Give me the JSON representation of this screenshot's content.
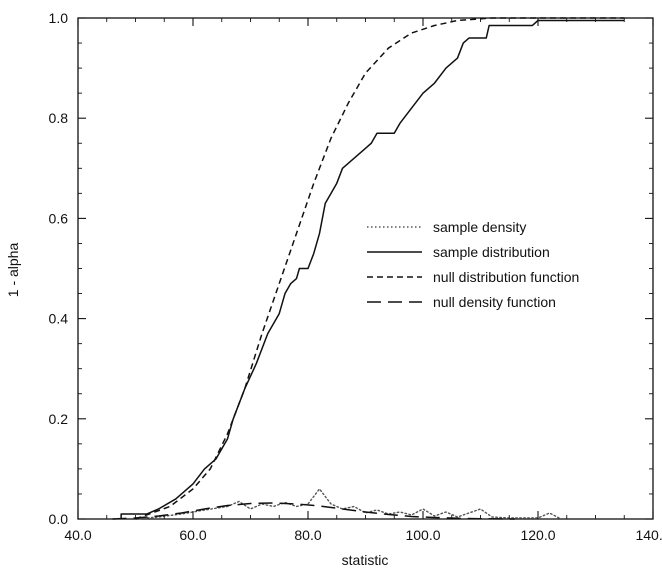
{
  "chart_data": {
    "type": "line",
    "xlabel": "statistic",
    "ylabel": "1 - alpha",
    "xlim": [
      40.0,
      140.0
    ],
    "ylim": [
      0.0,
      1.0
    ],
    "x_ticks": [
      40.0,
      60.0,
      80.0,
      100.0,
      120.0,
      140.0
    ],
    "x_tick_labels": [
      "40.0",
      "60.0",
      "80.0",
      "100.0",
      "120.0",
      "140.0"
    ],
    "y_ticks": [
      0.0,
      0.2,
      0.4,
      0.6,
      0.8,
      1.0
    ],
    "y_tick_labels": [
      "0.0",
      "0.2",
      "0.4",
      "0.6",
      "0.8",
      "1.0"
    ],
    "grid": false,
    "legend_position": "right-middle",
    "series": [
      {
        "name": "sample density",
        "style": "dotted",
        "color": "#555555",
        "points": [
          [
            50,
            0.0
          ],
          [
            54,
            0.004
          ],
          [
            58,
            0.01
          ],
          [
            62,
            0.018
          ],
          [
            66,
            0.025
          ],
          [
            68,
            0.035
          ],
          [
            70,
            0.02
          ],
          [
            72,
            0.03
          ],
          [
            74,
            0.025
          ],
          [
            76,
            0.033
          ],
          [
            78,
            0.025
          ],
          [
            80,
            0.03
          ],
          [
            82,
            0.06
          ],
          [
            84,
            0.03
          ],
          [
            86,
            0.02
          ],
          [
            88,
            0.025
          ],
          [
            90,
            0.012
          ],
          [
            92,
            0.018
          ],
          [
            94,
            0.01
          ],
          [
            96,
            0.014
          ],
          [
            98,
            0.008
          ],
          [
            100,
            0.02
          ],
          [
            102,
            0.006
          ],
          [
            104,
            0.014
          ],
          [
            106,
            0.004
          ],
          [
            108,
            0.012
          ],
          [
            110,
            0.02
          ],
          [
            112,
            0.004
          ],
          [
            115,
            0.002
          ],
          [
            120,
            0.002
          ],
          [
            122,
            0.012
          ],
          [
            124,
            0.0
          ]
        ]
      },
      {
        "name": "sample distribution",
        "style": "solid",
        "color": "#111111",
        "points": [
          [
            47.5,
            0.0
          ],
          [
            47.5,
            0.01
          ],
          [
            52,
            0.01
          ],
          [
            54,
            0.02
          ],
          [
            57,
            0.04
          ],
          [
            60,
            0.07
          ],
          [
            62,
            0.1
          ],
          [
            64,
            0.12
          ],
          [
            66,
            0.16
          ],
          [
            67,
            0.2
          ],
          [
            69,
            0.26
          ],
          [
            71,
            0.31
          ],
          [
            73,
            0.37
          ],
          [
            75,
            0.41
          ],
          [
            76,
            0.45
          ],
          [
            77,
            0.47
          ],
          [
            78,
            0.48
          ],
          [
            78.5,
            0.5
          ],
          [
            80,
            0.5
          ],
          [
            81,
            0.53
          ],
          [
            82,
            0.57
          ],
          [
            83,
            0.63
          ],
          [
            85,
            0.67
          ],
          [
            86,
            0.7
          ],
          [
            88,
            0.72
          ],
          [
            90,
            0.74
          ],
          [
            91,
            0.75
          ],
          [
            92,
            0.77
          ],
          [
            95,
            0.77
          ],
          [
            96,
            0.79
          ],
          [
            98,
            0.82
          ],
          [
            100,
            0.85
          ],
          [
            102,
            0.87
          ],
          [
            104,
            0.9
          ],
          [
            106,
            0.92
          ],
          [
            107,
            0.95
          ],
          [
            108,
            0.96
          ],
          [
            111,
            0.96
          ],
          [
            111.5,
            0.985
          ],
          [
            119,
            0.985
          ],
          [
            120,
            0.995
          ],
          [
            135,
            0.995
          ]
        ]
      },
      {
        "name": "null distribution function",
        "style": "dashed",
        "color": "#111111",
        "points": [
          [
            50,
            0.0
          ],
          [
            56,
            0.025
          ],
          [
            60,
            0.06
          ],
          [
            63,
            0.1
          ],
          [
            66,
            0.17
          ],
          [
            69,
            0.26
          ],
          [
            72,
            0.37
          ],
          [
            75,
            0.47
          ],
          [
            78,
            0.57
          ],
          [
            81,
            0.67
          ],
          [
            84,
            0.76
          ],
          [
            87,
            0.83
          ],
          [
            90,
            0.89
          ],
          [
            94,
            0.94
          ],
          [
            98,
            0.97
          ],
          [
            102,
            0.985
          ],
          [
            106,
            0.995
          ],
          [
            112,
            1.0
          ],
          [
            135,
            1.0
          ]
        ]
      },
      {
        "name": "null density function",
        "style": "long-dashed",
        "color": "#111111",
        "points": [
          [
            46,
            0.0
          ],
          [
            50,
            0.002
          ],
          [
            54,
            0.006
          ],
          [
            58,
            0.012
          ],
          [
            62,
            0.02
          ],
          [
            66,
            0.027
          ],
          [
            70,
            0.031
          ],
          [
            74,
            0.032
          ],
          [
            78,
            0.03
          ],
          [
            82,
            0.026
          ],
          [
            86,
            0.02
          ],
          [
            90,
            0.014
          ],
          [
            94,
            0.009
          ],
          [
            98,
            0.005
          ],
          [
            102,
            0.003
          ],
          [
            106,
            0.0015
          ],
          [
            110,
            0.0006
          ],
          [
            116,
            0.0
          ]
        ]
      }
    ]
  }
}
